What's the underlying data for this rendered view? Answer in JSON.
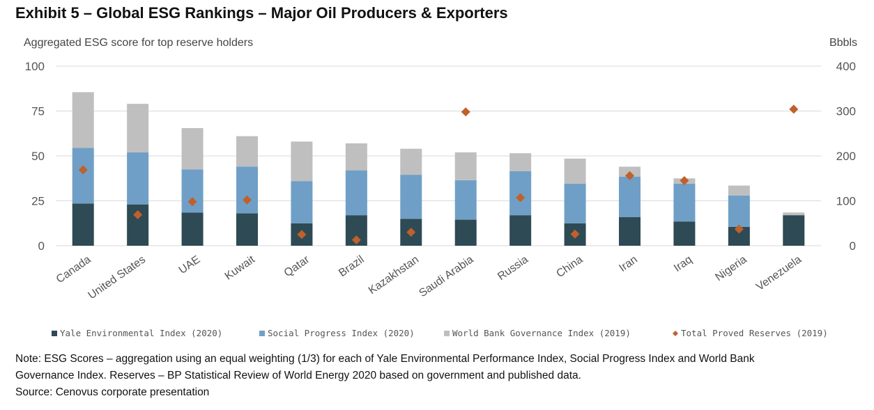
{
  "exhibit_title": "Exhibit 5 – Global ESG Rankings – Major Oil Producers & Exporters",
  "notes": {
    "line1": "Note: ESG Scores – aggregation using an equal weighting (1/3) for each of Yale Environmental Performance Index, Social Progress Index and World Bank",
    "line2": "Governance Index. Reserves – BP Statistical Review of World Energy 2020 based on government and published data.",
    "line3": "Source: Cenovus corporate presentation"
  },
  "colors": {
    "yale": "#2e4a54",
    "social": "#6f9fc6",
    "governance": "#bfbfbf",
    "reserves": "#c0602b",
    "grid": "#d9d9d9",
    "axis_text": "#555555"
  },
  "chart_data": {
    "type": "bar",
    "stacked": true,
    "subtitle": "Aggregated ESG score for top reserve holders",
    "y2_unit_label": "Bbbls",
    "categories": [
      "Canada",
      "United States",
      "UAE",
      "Kuwait",
      "Qatar",
      "Brazil",
      "Kazakhstan",
      "Saudi Arabia",
      "Russia",
      "China",
      "Iran",
      "Iraq",
      "Nigeria",
      "Venezuela"
    ],
    "ylim": [
      0,
      100
    ],
    "yticks": [
      0,
      25,
      50,
      75,
      100
    ],
    "y2lim": [
      0,
      400
    ],
    "y2ticks": [
      0,
      100,
      200,
      300,
      400
    ],
    "grid": true,
    "legend_position": "bottom",
    "series": [
      {
        "name": "Yale Environmental Index (2020)",
        "axis": "left",
        "kind": "bar",
        "color_key": "yale",
        "values": [
          23.5,
          23,
          18.5,
          18,
          12.5,
          17,
          15,
          14.5,
          17,
          12.5,
          16,
          13.5,
          10.5,
          17
        ]
      },
      {
        "name": "Social Progress Index (2020)",
        "axis": "left",
        "kind": "bar",
        "color_key": "social",
        "values": [
          31,
          29,
          24,
          26,
          23.5,
          25,
          24.5,
          22,
          24.5,
          22,
          22.5,
          21,
          17.5,
          0
        ]
      },
      {
        "name": "World Bank Governance Index (2019)",
        "axis": "left",
        "kind": "bar",
        "color_key": "governance",
        "values": [
          31,
          27,
          23,
          17,
          22,
          15,
          14.5,
          15.5,
          10,
          14,
          5.5,
          3,
          5.5,
          1.5
        ]
      },
      {
        "name": "Total Proved Reserves (2019)",
        "axis": "right",
        "kind": "scatter",
        "color_key": "reserves",
        "values": [
          169,
          69,
          98,
          102,
          25,
          13,
          30,
          298,
          107,
          26,
          156,
          145,
          37,
          304
        ]
      }
    ]
  }
}
